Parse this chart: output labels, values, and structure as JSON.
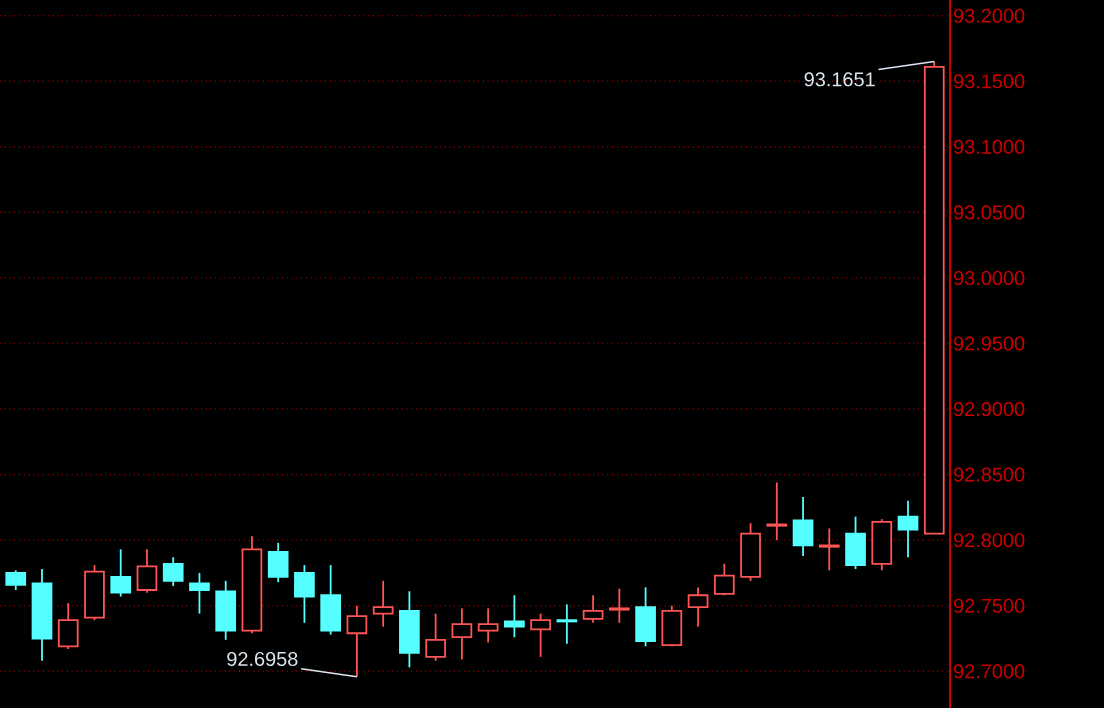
{
  "chart_data": {
    "type": "candlestick",
    "categories": [
      null,
      null,
      null,
      null,
      null,
      null,
      null,
      null,
      null,
      null,
      null,
      null,
      null,
      null,
      null,
      null,
      null,
      null,
      null,
      null,
      null,
      null,
      null,
      null,
      null,
      null,
      null,
      null,
      null,
      null,
      null,
      null,
      null,
      null,
      null,
      null
    ],
    "ohlc": [
      [
        92.775,
        92.777,
        92.762,
        92.766
      ],
      [
        92.767,
        92.778,
        92.708,
        92.725
      ],
      [
        92.719,
        92.752,
        92.717,
        92.739
      ],
      [
        92.741,
        92.781,
        92.739,
        92.776
      ],
      [
        92.772,
        92.793,
        92.757,
        92.76
      ],
      [
        92.762,
        92.793,
        92.76,
        92.78
      ],
      [
        92.782,
        92.787,
        92.765,
        92.769
      ],
      [
        92.767,
        92.775,
        92.744,
        92.762
      ],
      [
        92.761,
        92.769,
        92.724,
        92.731
      ],
      [
        92.731,
        92.803,
        92.729,
        92.793
      ],
      [
        92.791,
        92.798,
        92.768,
        92.772
      ],
      [
        92.775,
        92.781,
        92.737,
        92.757
      ],
      [
        92.758,
        92.781,
        92.728,
        92.731
      ],
      [
        92.729,
        92.75,
        92.6958,
        92.742
      ],
      [
        92.744,
        92.769,
        92.734,
        92.749
      ],
      [
        92.746,
        92.761,
        92.703,
        92.714
      ],
      [
        92.711,
        92.744,
        92.708,
        92.724
      ],
      [
        92.726,
        92.748,
        92.709,
        92.736
      ],
      [
        92.731,
        92.748,
        92.722,
        92.736
      ],
      [
        92.738,
        92.758,
        92.726,
        92.734
      ],
      [
        92.732,
        92.744,
        92.711,
        92.739
      ],
      [
        92.739,
        92.751,
        92.721,
        92.738
      ],
      [
        92.74,
        92.758,
        92.737,
        92.746
      ],
      [
        92.747,
        92.763,
        92.737,
        92.748
      ],
      [
        92.749,
        92.764,
        92.719,
        92.723
      ],
      [
        92.72,
        92.75,
        92.719,
        92.746
      ],
      [
        92.749,
        92.764,
        92.734,
        92.758
      ],
      [
        92.759,
        92.782,
        92.758,
        92.773
      ],
      [
        92.772,
        92.813,
        92.769,
        92.805
      ],
      [
        92.811,
        92.844,
        92.8,
        92.812
      ],
      [
        92.815,
        92.833,
        92.788,
        92.796
      ],
      [
        92.795,
        92.809,
        92.777,
        92.796
      ],
      [
        92.805,
        92.818,
        92.778,
        92.781
      ],
      [
        92.782,
        92.816,
        92.777,
        92.814
      ],
      [
        92.818,
        92.83,
        92.787,
        92.808
      ],
      [
        92.805,
        93.1651,
        92.805,
        93.161
      ]
    ],
    "colors": [
      "#55ffff",
      "#55ffff",
      "#ff5555",
      "#ff5555",
      "#55ffff",
      "#ff5555",
      "#55ffff",
      "#55ffff",
      "#55ffff",
      "#ff5555",
      "#55ffff",
      "#55ffff",
      "#55ffff",
      "#ff5555",
      "#ff5555",
      "#55ffff",
      "#ff5555",
      "#ff5555",
      "#ff5555",
      "#55ffff",
      "#ff5555",
      "#55ffff",
      "#ff5555",
      "#ff5555",
      "#55ffff",
      "#ff5555",
      "#ff5555",
      "#ff5555",
      "#ff5555",
      "#ff5555",
      "#55ffff",
      "#ff5555",
      "#55ffff",
      "#ff5555",
      "#55ffff",
      "#ff5555"
    ],
    "ylim": [
      92.672,
      93.212
    ],
    "yticks": [
      {
        "value": 92.7,
        "label": "92.7000"
      },
      {
        "value": 92.75,
        "label": "92.7500"
      },
      {
        "value": 92.8,
        "label": "92.8000"
      },
      {
        "value": 92.85,
        "label": "92.8500"
      },
      {
        "value": 92.9,
        "label": "92.9000"
      },
      {
        "value": 92.95,
        "label": "92.9500"
      },
      {
        "value": 93.0,
        "label": "93.0000"
      },
      {
        "value": 93.05,
        "label": "93.0500"
      },
      {
        "value": 93.1,
        "label": "93.1000"
      },
      {
        "value": 93.15,
        "label": "93.1500"
      },
      {
        "value": 93.2,
        "label": "93.2000"
      }
    ],
    "grid": "y",
    "tick_labels": "y",
    "annotations": [
      "93.1651",
      "92.6958"
    ]
  }
}
